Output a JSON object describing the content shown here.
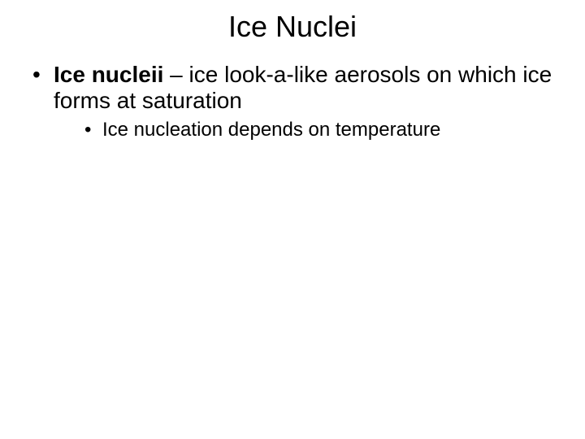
{
  "slide": {
    "title": "Ice Nuclei",
    "title_fontsize": 36,
    "background_color": "#ffffff",
    "text_color": "#000000",
    "font_family": "Arial",
    "bullets": {
      "level1": {
        "term": "Ice nucleii",
        "separator": " – ",
        "definition": "ice look-a-like aerosols on which ice forms at saturation",
        "fontsize": 28,
        "marker": "•"
      },
      "level2": {
        "text": "Ice nucleation depends on temperature",
        "fontsize": 24,
        "marker": "•"
      }
    }
  }
}
